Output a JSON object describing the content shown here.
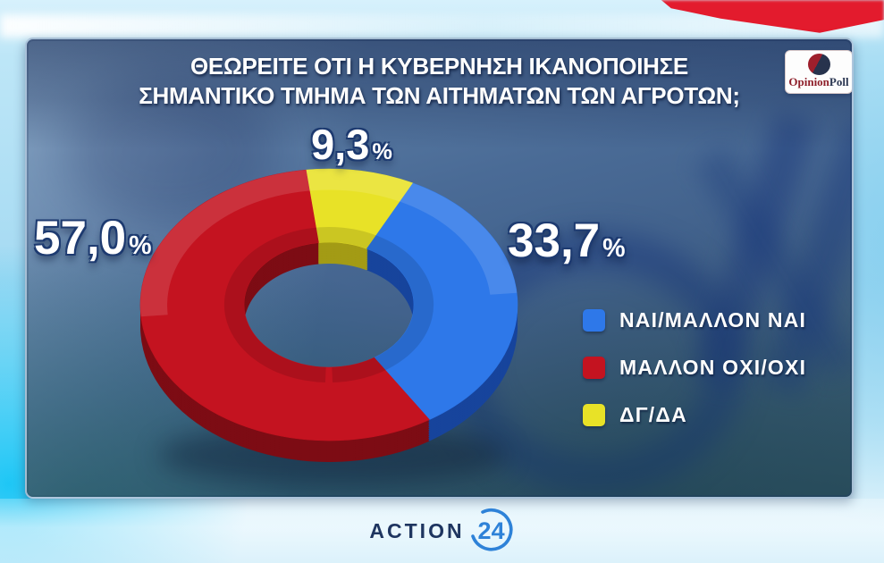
{
  "header": {
    "question_line1": "ΘΕΩΡΕΙΤΕ ΟΤΙ Η ΚΥΒΕΡΝΗΣΗ ΙΚΑΝΟΠΟΙΗΣΕ",
    "question_line2": "ΣΗΜΑΝΤΙΚΟ ΤΜΗΜΑ ΤΩΝ ΑΙΤΗΜΑΤΩΝ ΤΩΝ ΑΓΡΟΤΩΝ;"
  },
  "branding": {
    "pollster_logo": {
      "part1": "Opinion",
      "part2": "Poll",
      "part1_color": "#8e1f2a",
      "part2_color": "#2b3752"
    },
    "channel_logo": {
      "name": "ACTION",
      "number": "24",
      "name_color": "#1e3560",
      "accent_color": "#2e82d8"
    }
  },
  "chart_data": {
    "type": "pie",
    "subtype": "3d-donut",
    "percent_sign": "%",
    "start_angle_deg": -7,
    "clockwise_order": [
      "ΔΓ/ΔΑ",
      "ΝΑΙ/ΜΑΛΛΟΝ ΝΑΙ",
      "ΜΑΛΛΟΝ ΟΧΙ/ΟΧΙ"
    ],
    "legend_position": "right",
    "slices": [
      {
        "label": "ΝΑΙ/ΜΑΛΛΟΝ ΝΑΙ",
        "value": 33.7,
        "value_label": "33,7",
        "color": "#2e78e9",
        "side_color": "#17449c"
      },
      {
        "label": "ΜΑΛΛΟΝ ΟΧΙ/ΟΧΙ",
        "value": 57.0,
        "value_label": "57,0",
        "color": "#c41320",
        "side_color": "#7d0c14"
      },
      {
        "label": "ΔΓ/ΔΑ",
        "value": 9.3,
        "value_label": "9,3",
        "color": "#e8e227",
        "side_color": "#a39b15"
      }
    ]
  }
}
